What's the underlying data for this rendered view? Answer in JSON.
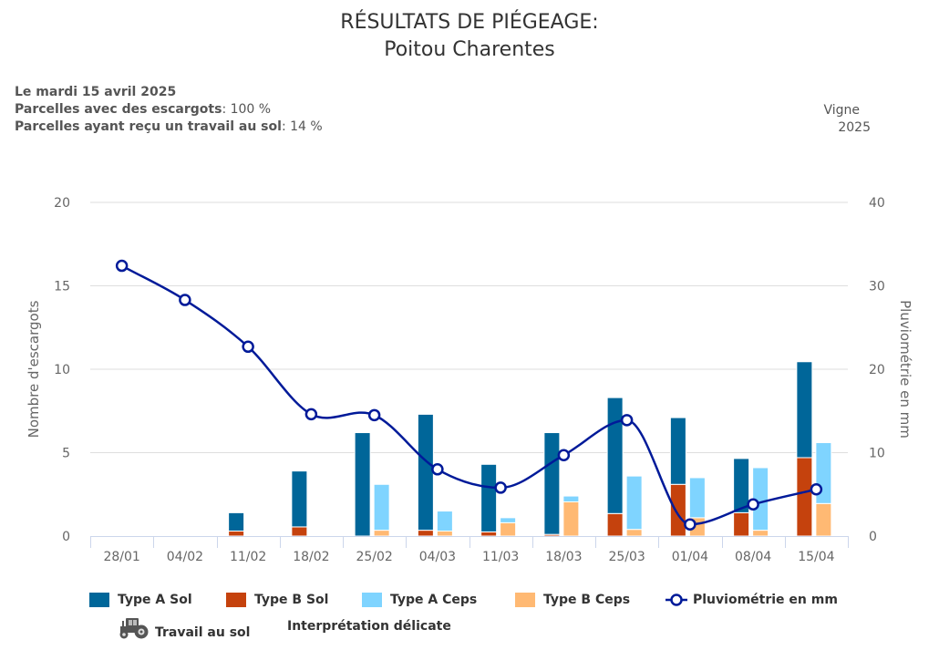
{
  "header": {
    "title_line1": "RÉSULTATS DE PIÉGEAGE:",
    "title_line2": "Poitou Charentes"
  },
  "info": {
    "date": "Le mardi 15 avril 2025",
    "snails_label": "Parcelles avec des escargots",
    "snails_value": ": 100 %",
    "soil_label": "Parcelles ayant reçu un travail au sol",
    "soil_value": ": 14 %"
  },
  "crop": {
    "name": "Vigne",
    "year": "2025"
  },
  "chart_data": {
    "type": "bar",
    "title": "RÉSULTATS DE PIÉGEAGE: Poitou Charentes",
    "categories": [
      "28/01",
      "04/02",
      "11/02",
      "18/02",
      "25/02",
      "04/03",
      "11/03",
      "18/03",
      "25/03",
      "01/04",
      "08/04",
      "15/04"
    ],
    "ylabel": "Nombre d'escargots",
    "y2label": "Pluviométrie en mm",
    "ylim": [
      0,
      20
    ],
    "y2lim": [
      0,
      40
    ],
    "yticks": [
      "0",
      "5",
      "10",
      "15",
      "20"
    ],
    "y2ticks": [
      "0",
      "10",
      "20",
      "30",
      "40"
    ],
    "grid": true,
    "legend_position": "bottom",
    "stacks": [
      {
        "stack": "Sol",
        "series": [
          {
            "name": "Type A Sol",
            "color": "#006699",
            "values": [
              0,
              0,
              1.1,
              3.35,
              6.2,
              6.95,
              4.05,
              6.1,
              6.95,
              4.0,
              3.25,
              5.75
            ]
          },
          {
            "name": "Type B Sol",
            "color": "#c5420d",
            "values": [
              0,
              0,
              0.3,
              0.55,
              0,
              0.35,
              0.25,
              0.1,
              1.35,
              3.1,
              1.4,
              4.7
            ]
          }
        ]
      },
      {
        "stack": "Ceps",
        "series": [
          {
            "name": "Type A Ceps",
            "color": "#7fd4ff",
            "values": [
              0,
              0,
              0,
              0,
              2.75,
              1.2,
              0.3,
              0.35,
              3.2,
              2.4,
              3.75,
              3.65
            ]
          },
          {
            "name": "Type B Ceps",
            "color": "#ffb973",
            "values": [
              0,
              0,
              0,
              0,
              0.35,
              0.3,
              0.8,
              2.05,
              0.4,
              1.1,
              0.35,
              1.95
            ]
          }
        ]
      }
    ],
    "line": {
      "name": "Pluviométrie en mm",
      "color": "#001a99",
      "axis": "right",
      "values": [
        32.4,
        28.3,
        22.7,
        14.6,
        14.5,
        8.0,
        5.8,
        9.7,
        13.9,
        1.4,
        3.8,
        5.6
      ]
    }
  },
  "legend": {
    "items": [
      "Type A Sol",
      "Type B Sol",
      "Type A Ceps",
      "Type B Ceps",
      "Pluviométrie en mm"
    ],
    "colors": [
      "#006699",
      "#c5420d",
      "#7fd4ff",
      "#ffb973",
      "#001a99"
    ],
    "tractor_icon": "tractor-icon",
    "tractor_label": "Travail au sol",
    "note": "Interprétation délicate"
  }
}
